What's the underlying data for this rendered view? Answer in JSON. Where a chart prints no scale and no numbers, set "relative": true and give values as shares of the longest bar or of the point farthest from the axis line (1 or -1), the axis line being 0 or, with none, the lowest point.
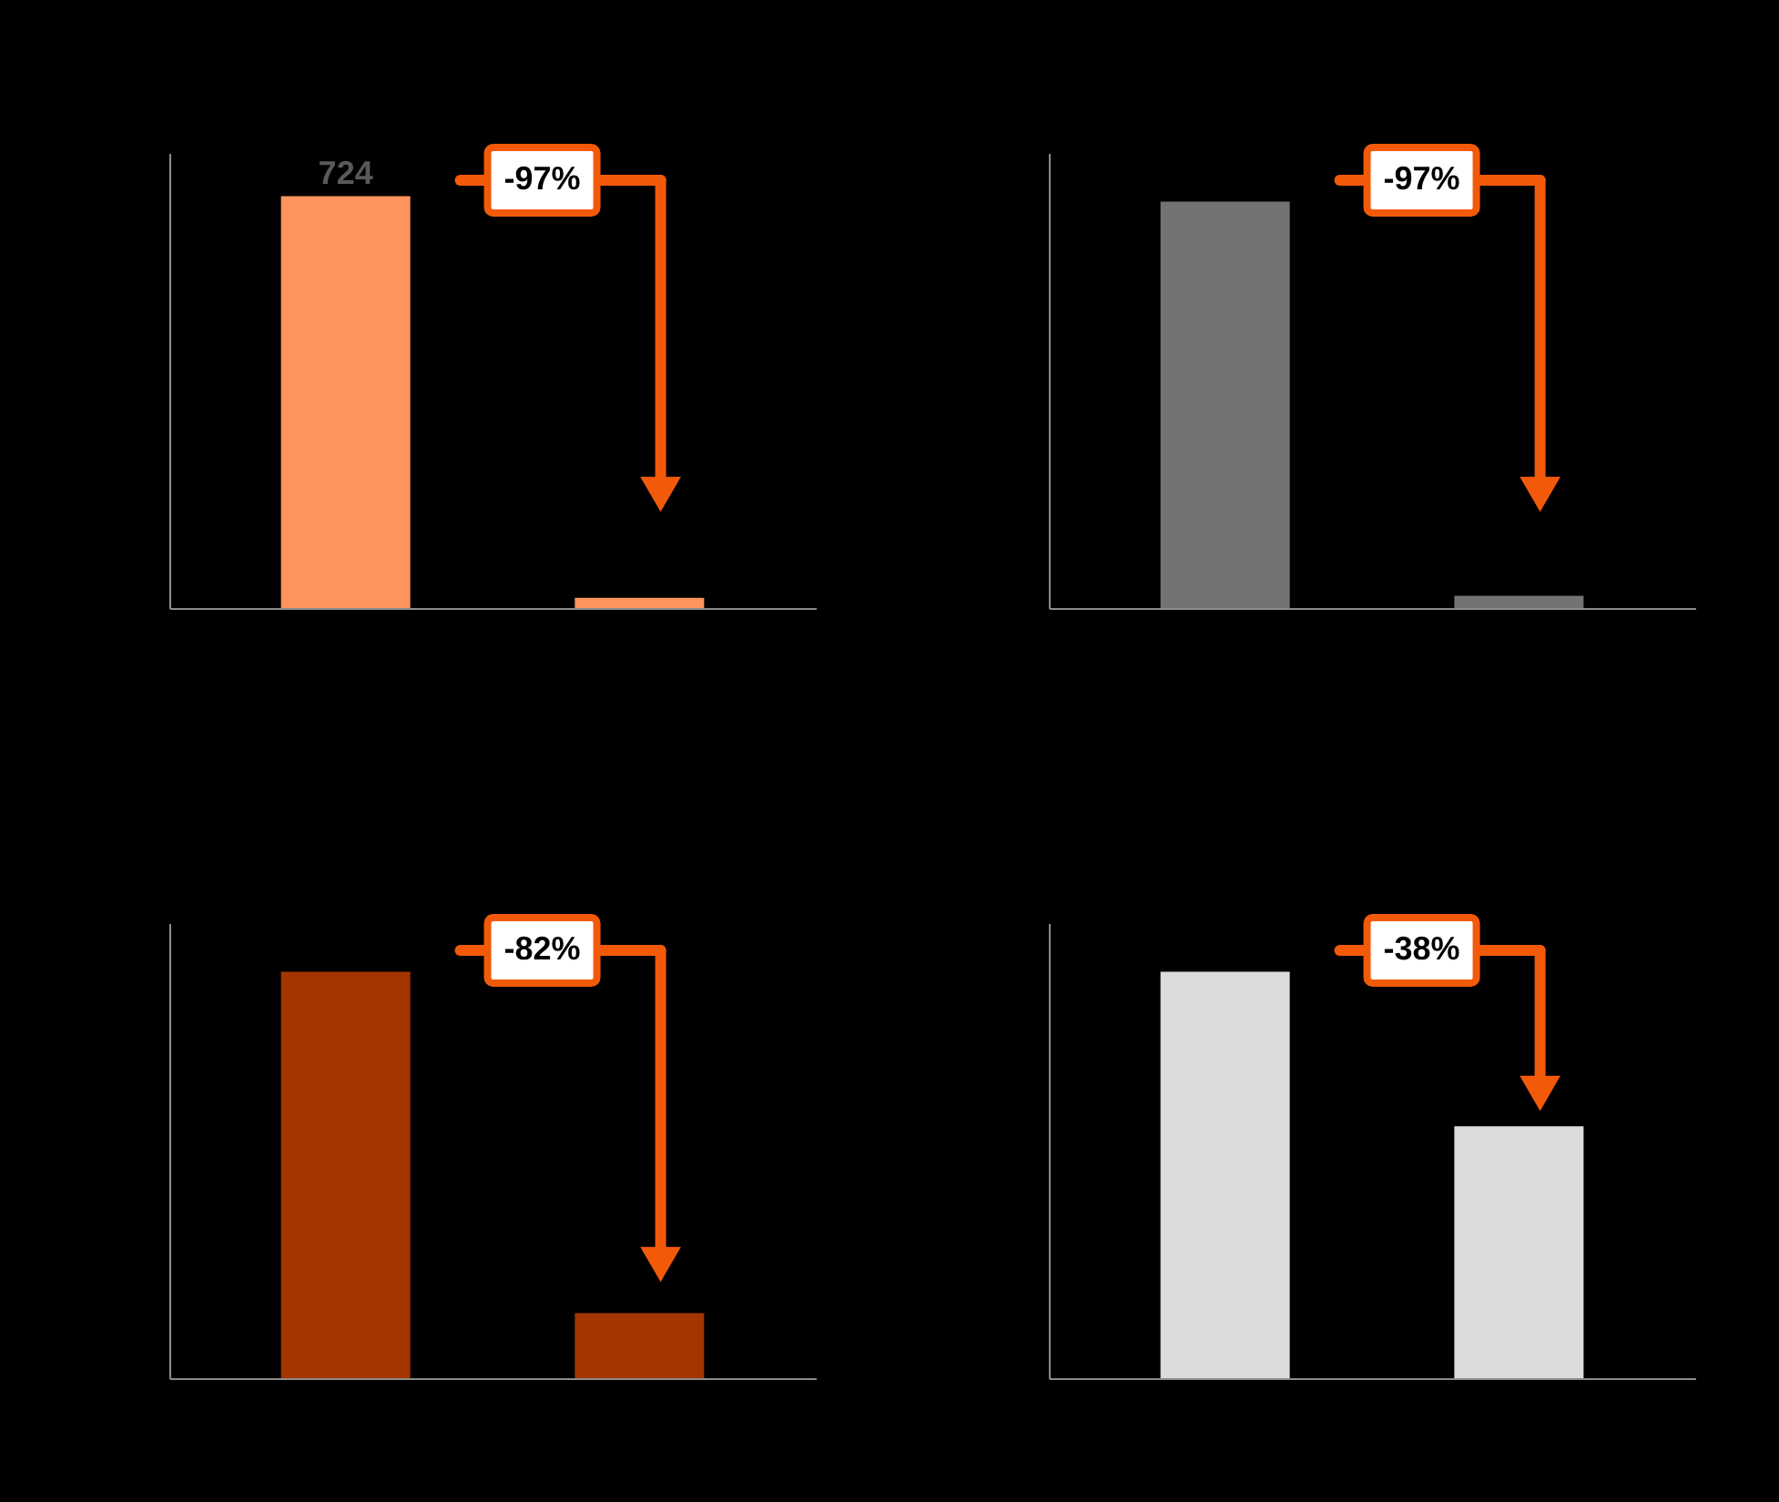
{
  "chart_data": [
    {
      "type": "bar",
      "categories": [
        null,
        null
      ],
      "values": [
        724,
        18
      ],
      "color": "#ff945e",
      "value_labels": [
        "724",
        null
      ],
      "annotations": [
        "-97%"
      ],
      "tick_labels": false,
      "ylim": [
        0,
        800
      ]
    },
    {
      "type": "bar",
      "relative": true,
      "categories": [
        null,
        null
      ],
      "values": [
        1,
        0.03
      ],
      "color": "#737373",
      "annotations": [
        "-97%"
      ],
      "tick_labels": false
    },
    {
      "type": "bar",
      "relative": true,
      "categories": [
        null,
        null
      ],
      "values": [
        1,
        0.16
      ],
      "color": "#a33500",
      "annotations": [
        "-82%"
      ],
      "tick_labels": false
    },
    {
      "type": "bar",
      "relative": true,
      "categories": [
        null,
        null
      ],
      "values": [
        1,
        0.62
      ],
      "color": "#dcdcdc",
      "annotations": [
        "-38%"
      ],
      "tick_labels": false
    }
  ]
}
